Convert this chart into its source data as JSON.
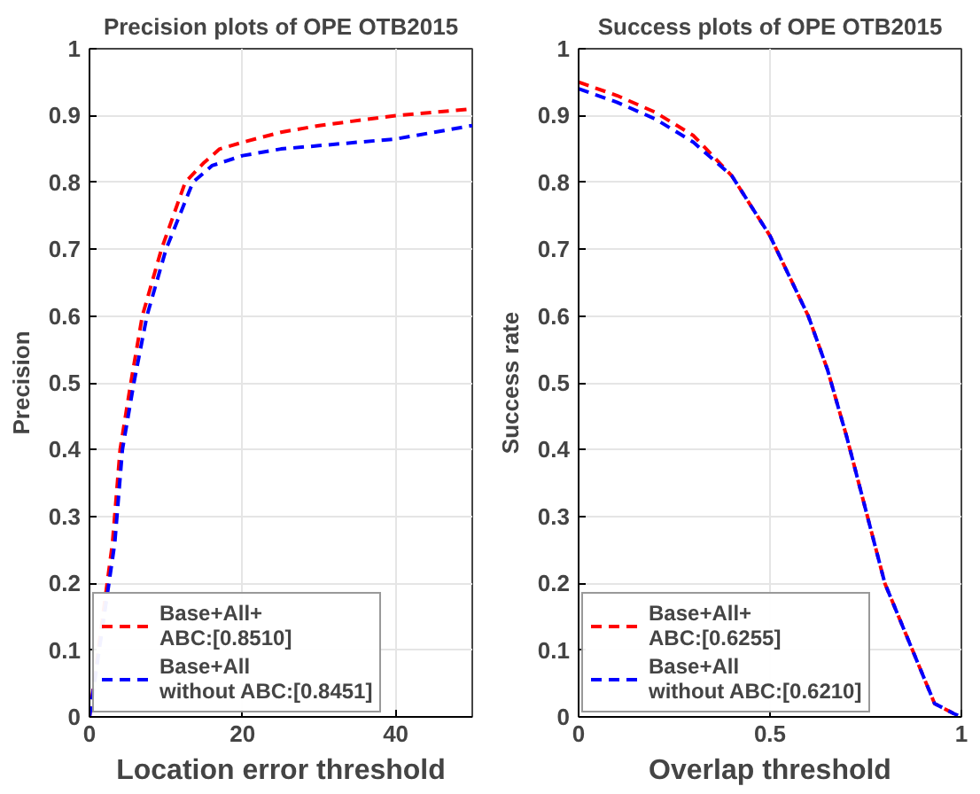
{
  "chart_data": [
    {
      "type": "line",
      "title": "Precision plots of OPE OTB2015",
      "xlabel": "Location error threshold",
      "ylabel": "Precision",
      "xlim": [
        0,
        50
      ],
      "xticks": [
        0,
        20,
        40
      ],
      "ylim": [
        0,
        1
      ],
      "yticks": [
        0,
        0.1,
        0.2,
        0.3,
        0.4,
        0.5,
        0.6,
        0.7,
        0.8,
        0.9,
        1
      ],
      "grid": true,
      "legend": "bottom left",
      "marker": "none",
      "line_style": "dashed",
      "series": [
        {
          "name": "Base+All+ ABC:[0.8510]",
          "color": "#ff0000",
          "x": [
            0,
            3,
            4,
            5.4,
            6.9,
            9.4,
            12.5,
            15,
            17,
            20,
            25,
            30,
            40,
            50
          ],
          "values": [
            0,
            0.26,
            0.4,
            0.5,
            0.6,
            0.7,
            0.8,
            0.83,
            0.85,
            0.86,
            0.875,
            0.885,
            0.9,
            0.91
          ]
        },
        {
          "name": "Base+All without ABC:[0.8451]",
          "color": "#0000ff",
          "x": [
            0,
            3.3,
            4.3,
            5.8,
            7.5,
            10,
            13.5,
            16,
            20,
            25,
            30,
            40,
            50
          ],
          "values": [
            0,
            0.26,
            0.4,
            0.5,
            0.6,
            0.7,
            0.8,
            0.825,
            0.84,
            0.85,
            0.855,
            0.865,
            0.885
          ]
        }
      ]
    },
    {
      "type": "line",
      "title": "Success plots of OPE OTB2015",
      "xlabel": "Overlap threshold",
      "ylabel": "Success rate",
      "xlim": [
        0,
        1
      ],
      "xticks": [
        0,
        0.5,
        1
      ],
      "ylim": [
        0,
        1
      ],
      "yticks": [
        0,
        0.1,
        0.2,
        0.3,
        0.4,
        0.5,
        0.6,
        0.7,
        0.8,
        0.9,
        1
      ],
      "grid": true,
      "legend": "bottom left",
      "marker": "none",
      "line_style": "dashed",
      "series": [
        {
          "name": "Base+All+ ABC:[0.6255]",
          "color": "#ff0000",
          "x": [
            0,
            0.1,
            0.2,
            0.3,
            0.4,
            0.5,
            0.6,
            0.65,
            0.7,
            0.75,
            0.8,
            0.93,
            0.98,
            1
          ],
          "values": [
            0.95,
            0.93,
            0.905,
            0.87,
            0.81,
            0.72,
            0.6,
            0.52,
            0.42,
            0.31,
            0.2,
            0.02,
            0.005,
            0
          ]
        },
        {
          "name": "Base+All without ABC:[0.6210]",
          "color": "#0000ff",
          "x": [
            0,
            0.1,
            0.2,
            0.3,
            0.4,
            0.5,
            0.6,
            0.65,
            0.7,
            0.75,
            0.8,
            0.93,
            0.98,
            1
          ],
          "values": [
            0.94,
            0.92,
            0.895,
            0.86,
            0.81,
            0.72,
            0.6,
            0.52,
            0.42,
            0.31,
            0.2,
            0.02,
            0.005,
            0
          ]
        }
      ]
    }
  ]
}
